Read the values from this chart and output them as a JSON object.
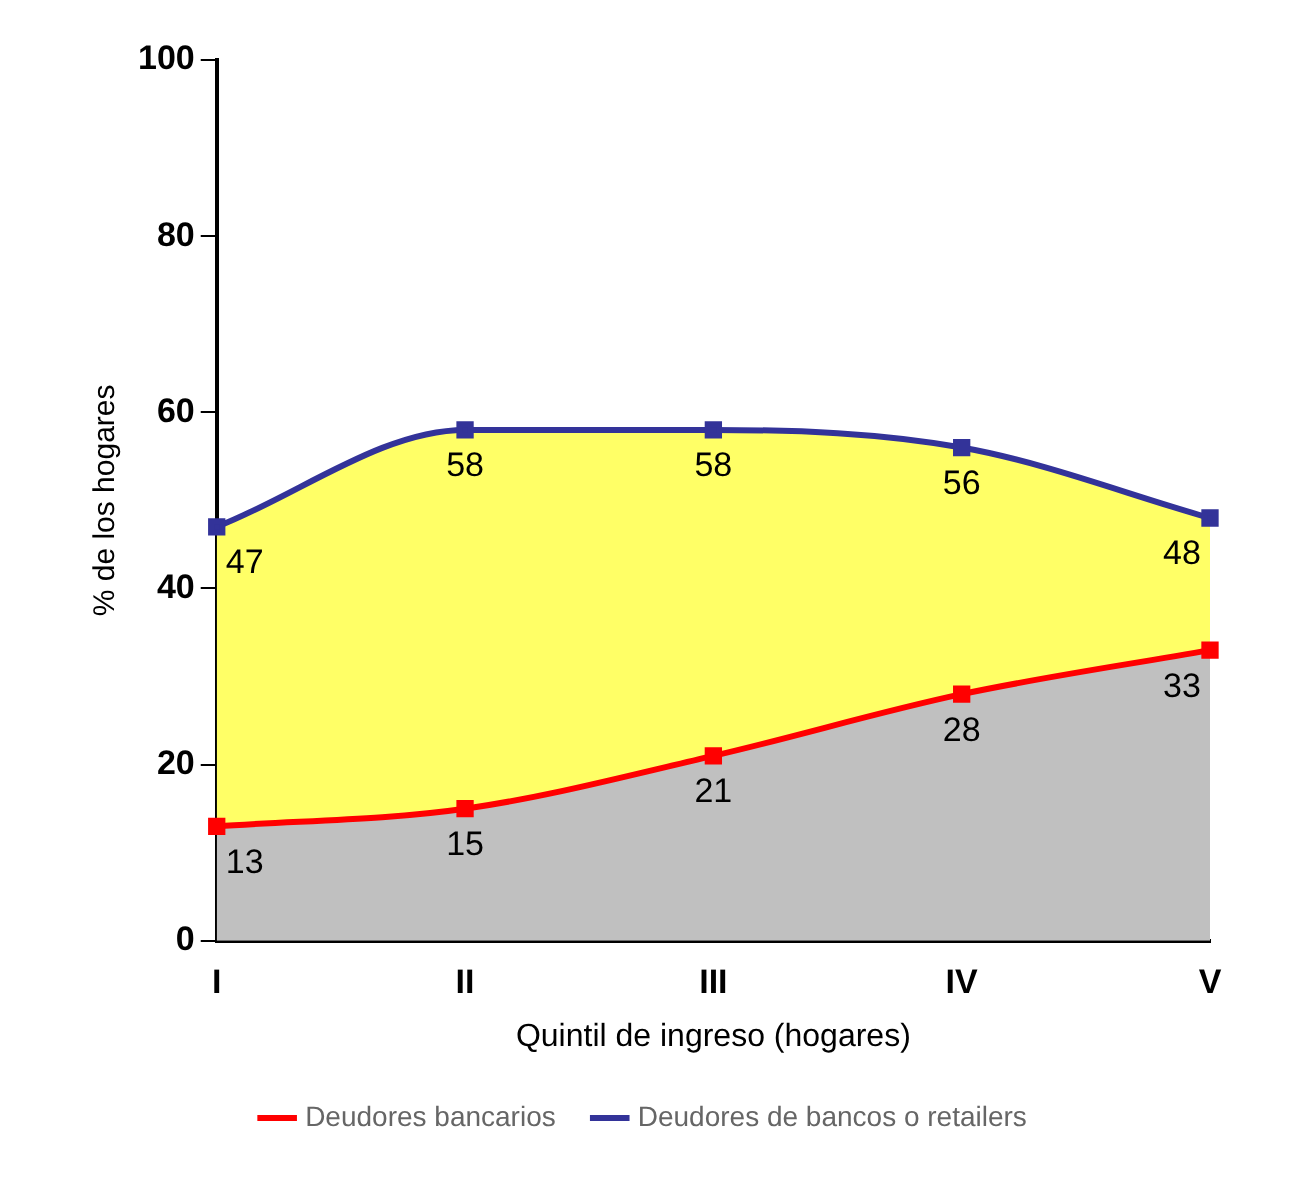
{
  "chart_data": {
    "type": "area",
    "xlabel": "Quintil de ingreso (hogares)",
    "ylabel": "% de los hogares",
    "categories": [
      "I",
      "II",
      "III",
      "IV",
      "V"
    ],
    "series": [
      {
        "name": "Deudores bancarios",
        "color": "#ff0000",
        "values": [
          13,
          15,
          21,
          28,
          33
        ]
      },
      {
        "name": "Deudores de bancos o retailers",
        "color": "#333399",
        "values": [
          47,
          58,
          58,
          56,
          48
        ]
      }
    ],
    "ylim": [
      0,
      100
    ],
    "yticks": [
      0,
      20,
      40,
      60,
      80,
      100
    ],
    "grid": false,
    "legend": "bottom",
    "marker": "square",
    "line_style": "solid",
    "data_labels": true
  }
}
